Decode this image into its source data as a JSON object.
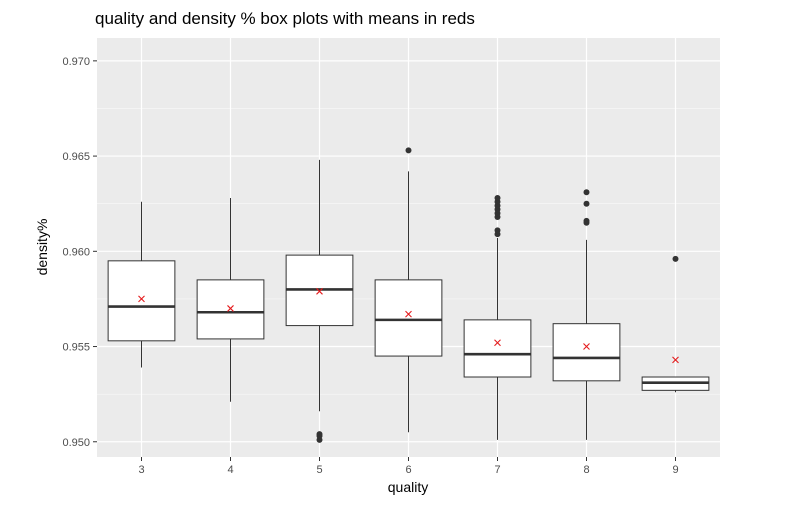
{
  "chart_data": {
    "type": "box",
    "title": "quality and density % box plots with means in reds",
    "xlabel": "quality",
    "ylabel": "density%",
    "ylim": [
      0.9492,
      0.9712
    ],
    "yticks": [
      "0.950",
      "0.955",
      "0.960",
      "0.965",
      "0.970"
    ],
    "categories": [
      "3",
      "4",
      "5",
      "6",
      "7",
      "8",
      "9"
    ],
    "boxes": [
      {
        "category": "3",
        "whisker_low": 0.9539,
        "q1": 0.9553,
        "median": 0.9571,
        "q3": 0.9595,
        "whisker_high": 0.9626,
        "mean": 0.9575,
        "outliers": []
      },
      {
        "category": "4",
        "whisker_low": 0.9521,
        "q1": 0.9554,
        "median": 0.9568,
        "q3": 0.9585,
        "whisker_high": 0.9628,
        "mean": 0.957,
        "outliers": []
      },
      {
        "category": "5",
        "whisker_low": 0.9516,
        "q1": 0.9561,
        "median": 0.958,
        "q3": 0.9598,
        "whisker_high": 0.9648,
        "mean": 0.9579,
        "outliers": [
          0.9501,
          0.9503,
          0.9504
        ]
      },
      {
        "category": "6",
        "whisker_low": 0.9505,
        "q1": 0.9545,
        "median": 0.9564,
        "q3": 0.9585,
        "whisker_high": 0.9642,
        "mean": 0.9567,
        "outliers": [
          0.9653
        ]
      },
      {
        "category": "7",
        "whisker_low": 0.9501,
        "q1": 0.9534,
        "median": 0.9546,
        "q3": 0.9564,
        "whisker_high": 0.9607,
        "mean": 0.9552,
        "outliers": [
          0.9609,
          0.9611,
          0.9618,
          0.962,
          0.9622,
          0.9624,
          0.9626,
          0.9628
        ]
      },
      {
        "category": "8",
        "whisker_low": 0.9501,
        "q1": 0.9532,
        "median": 0.9544,
        "q3": 0.9562,
        "whisker_high": 0.9606,
        "mean": 0.955,
        "outliers": [
          0.9615,
          0.9616,
          0.9625,
          0.9631
        ]
      },
      {
        "category": "9",
        "whisker_low": 0.9526,
        "q1": 0.9527,
        "median": 0.9531,
        "q3": 0.9534,
        "whisker_high": 0.9534,
        "mean": 0.9543,
        "outliers": [
          0.9596
        ]
      }
    ],
    "grid": true,
    "legend": "none",
    "colors": {
      "panel": "#ebebeb",
      "grid_major": "#ffffff",
      "box_fill": "#ffffff",
      "box_line": "#333333",
      "mean_marker": "#e41a1c"
    }
  }
}
